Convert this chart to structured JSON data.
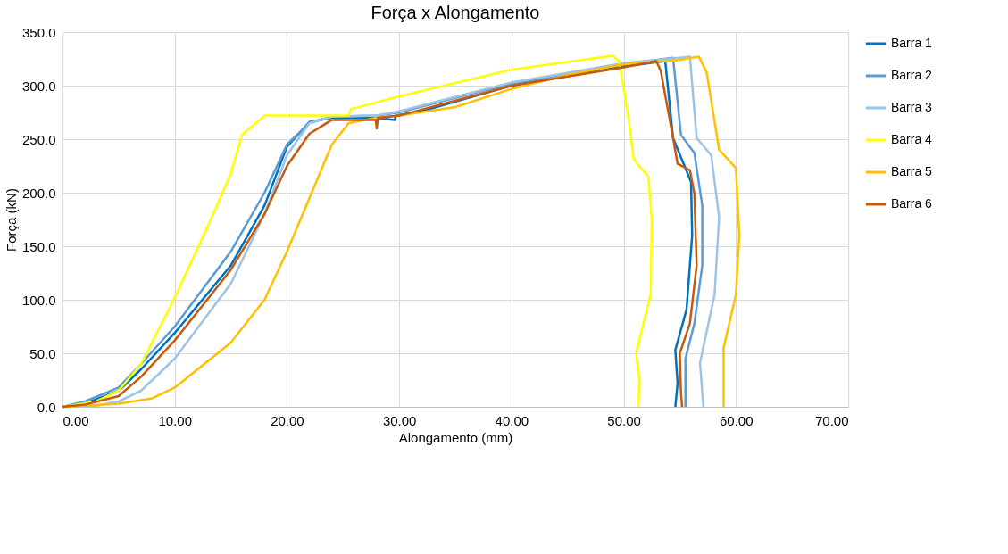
{
  "chart_data": {
    "type": "line",
    "title": "Força x Alongamento",
    "xlabel": "Alongamento (mm)",
    "ylabel": "Força (kN)",
    "xlim": [
      0,
      70
    ],
    "ylim": [
      0,
      350
    ],
    "xticks": [
      {
        "value": 0,
        "label": "0.00"
      },
      {
        "value": 10,
        "label": "10.00"
      },
      {
        "value": 20,
        "label": "20.00"
      },
      {
        "value": 30,
        "label": "30.00"
      },
      {
        "value": 40,
        "label": "40.00"
      },
      {
        "value": 50,
        "label": "50.00"
      },
      {
        "value": 60,
        "label": "60.00"
      },
      {
        "value": 70,
        "label": "70.00"
      }
    ],
    "yticks": [
      {
        "value": 0,
        "label": "0.0"
      },
      {
        "value": 50,
        "label": "50.0"
      },
      {
        "value": 100,
        "label": "100.0"
      },
      {
        "value": 150,
        "label": "150.0"
      },
      {
        "value": 200,
        "label": "200.0"
      },
      {
        "value": 250,
        "label": "250.0"
      },
      {
        "value": 300,
        "label": "300.0"
      },
      {
        "value": 350,
        "label": "350.0"
      }
    ],
    "grid": true,
    "legend": "right",
    "marker": "none",
    "line_style": "solid",
    "series": [
      {
        "name": "Barra 1",
        "color": "#0070c0",
        "x": [
          0,
          2,
          5,
          7,
          10,
          15,
          18,
          20,
          22,
          24,
          28,
          29.6,
          29.7,
          32,
          40,
          50,
          53.7,
          54.4,
          56.0,
          56.1,
          55.6,
          54.6,
          54.8,
          54.6
        ],
        "values": [
          0,
          3,
          15,
          35,
          69,
          132,
          188,
          243,
          266,
          270,
          270,
          268,
          272,
          276,
          300,
          318,
          323,
          251,
          210,
          160,
          91,
          53,
          22,
          0
        ]
      },
      {
        "name": "Barra 2",
        "color": "#5b9bd5",
        "x": [
          0,
          2,
          5,
          7,
          10,
          15,
          18,
          20,
          22,
          24,
          28,
          30,
          40,
          50,
          54.4,
          55.1,
          56.3,
          57.0,
          57.0,
          56.3,
          55.5,
          55.5
        ],
        "values": [
          0,
          5,
          18,
          40,
          75,
          145,
          200,
          245,
          265,
          271,
          272,
          275,
          302,
          320,
          326,
          254,
          237,
          188,
          132,
          78,
          45,
          0
        ]
      },
      {
        "name": "Barra 3",
        "color": "#9dc3e6",
        "x": [
          0,
          3,
          5,
          7,
          10,
          15,
          18,
          20,
          22,
          24,
          28,
          30,
          40,
          50,
          55.9,
          56.5,
          57.8,
          58.5,
          58.1,
          56.8,
          57.1
        ],
        "values": [
          0,
          1,
          5,
          15,
          45,
          115,
          180,
          235,
          265,
          271,
          272,
          276,
          303,
          321,
          327,
          251,
          235,
          177,
          105,
          41,
          0
        ]
      },
      {
        "name": "Barra 4",
        "color": "#ffff00",
        "x": [
          0,
          3,
          5,
          7,
          10,
          13,
          15,
          16,
          18,
          20,
          25.5,
          25.7,
          30,
          40,
          49,
          49.6,
          50.4,
          50.9,
          52.2,
          52.5,
          52.4,
          51.1,
          51.4,
          51.3
        ],
        "values": [
          0,
          5,
          15,
          40,
          102,
          170,
          218,
          254,
          272,
          272,
          272,
          278,
          290,
          315,
          328,
          323,
          271,
          231,
          215,
          174,
          105,
          50,
          25,
          0
        ]
      },
      {
        "name": "Barra 5",
        "color": "#ffc000",
        "x": [
          0,
          5,
          8,
          10,
          15,
          18,
          20,
          22,
          24,
          25.5,
          28,
          30,
          35,
          40,
          45,
          50,
          55,
          56.7,
          57.4,
          58.5,
          60.0,
          60.3,
          60.0,
          58.9,
          58.9,
          58.9
        ],
        "values": [
          0,
          3,
          8,
          18,
          60,
          100,
          145,
          195,
          245,
          265,
          270,
          272,
          280,
          297,
          310,
          320,
          324,
          327,
          312,
          240,
          223,
          160,
          105,
          55,
          8,
          0
        ]
      },
      {
        "name": "Barra 6",
        "color": "#c55a11",
        "x": [
          0,
          2,
          5,
          7,
          10,
          15,
          18,
          20,
          22,
          24,
          27.9,
          28.0,
          28.1,
          30,
          40,
          50,
          52.9,
          53.3,
          54.4,
          54.8,
          55.9,
          56.3,
          56.5,
          55.9,
          55.0,
          55.1,
          55.2
        ],
        "values": [
          0,
          2,
          10,
          28,
          62,
          128,
          180,
          225,
          255,
          268,
          268,
          260,
          270,
          272,
          300,
          317,
          323,
          314,
          251,
          227,
          221,
          199,
          132,
          78,
          50,
          14,
          0
        ]
      }
    ]
  }
}
